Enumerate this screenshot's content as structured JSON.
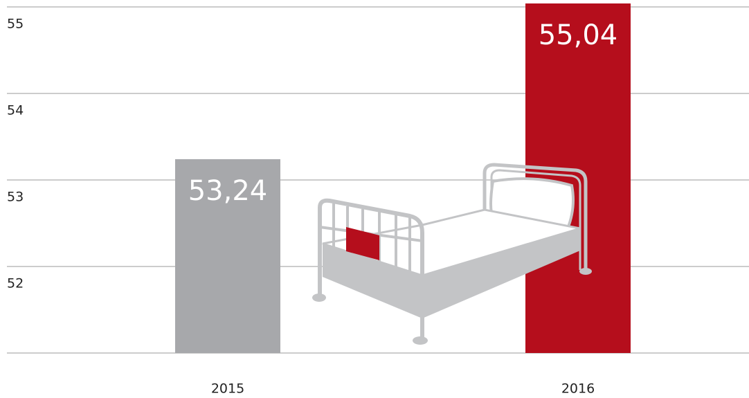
{
  "chart_data": {
    "type": "bar",
    "categories": [
      "2015",
      "2016"
    ],
    "values": [
      53.24,
      55.04
    ],
    "value_labels": [
      "53,24",
      "55,04"
    ],
    "colors": [
      "#a7a8ab",
      "#b50e1c"
    ],
    "ylim": [
      51,
      55
    ],
    "yticks": [
      52,
      53,
      54,
      55
    ],
    "grid": true
  }
}
